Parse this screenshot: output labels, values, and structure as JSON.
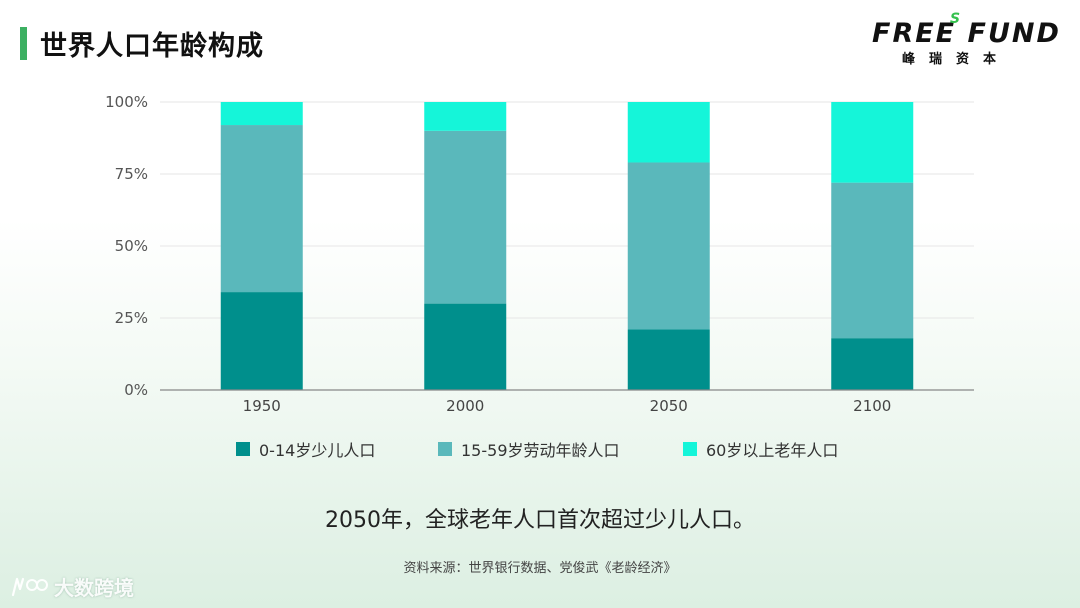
{
  "page": {
    "title": "世界人口年龄构成",
    "headline": "2050年，全球老年人口首次超过少儿人口。",
    "source": "资料来源：世界银行数据、党俊武《老龄经济》"
  },
  "logo": {
    "brand": "FREE FUND",
    "superscript": "S",
    "subtitle": "峰瑞资本"
  },
  "watermark": {
    "text": "大数跨境"
  },
  "colors": {
    "accent": "#3cb062",
    "series_child": "#008f8c",
    "series_working": "#5ab8bb",
    "series_elderly": "#15f5d9"
  },
  "chart_data": {
    "type": "bar",
    "stacked": true,
    "categories": [
      "1950",
      "2000",
      "2050",
      "2100"
    ],
    "series": [
      {
        "name": "0-14岁少儿人口",
        "values": [
          34,
          30,
          21,
          18
        ],
        "color": "#008f8c"
      },
      {
        "name": "15-59岁劳动年龄人口",
        "values": [
          58,
          60,
          58,
          54
        ],
        "color": "#5ab8bb"
      },
      {
        "name": "60岁以上老年人口",
        "values": [
          8,
          10,
          21,
          28
        ],
        "color": "#15f5d9"
      }
    ],
    "yticks": [
      "0%",
      "25%",
      "50%",
      "75%",
      "100%"
    ],
    "ylim": [
      0,
      100
    ],
    "grid": true,
    "legend": "bottom"
  }
}
